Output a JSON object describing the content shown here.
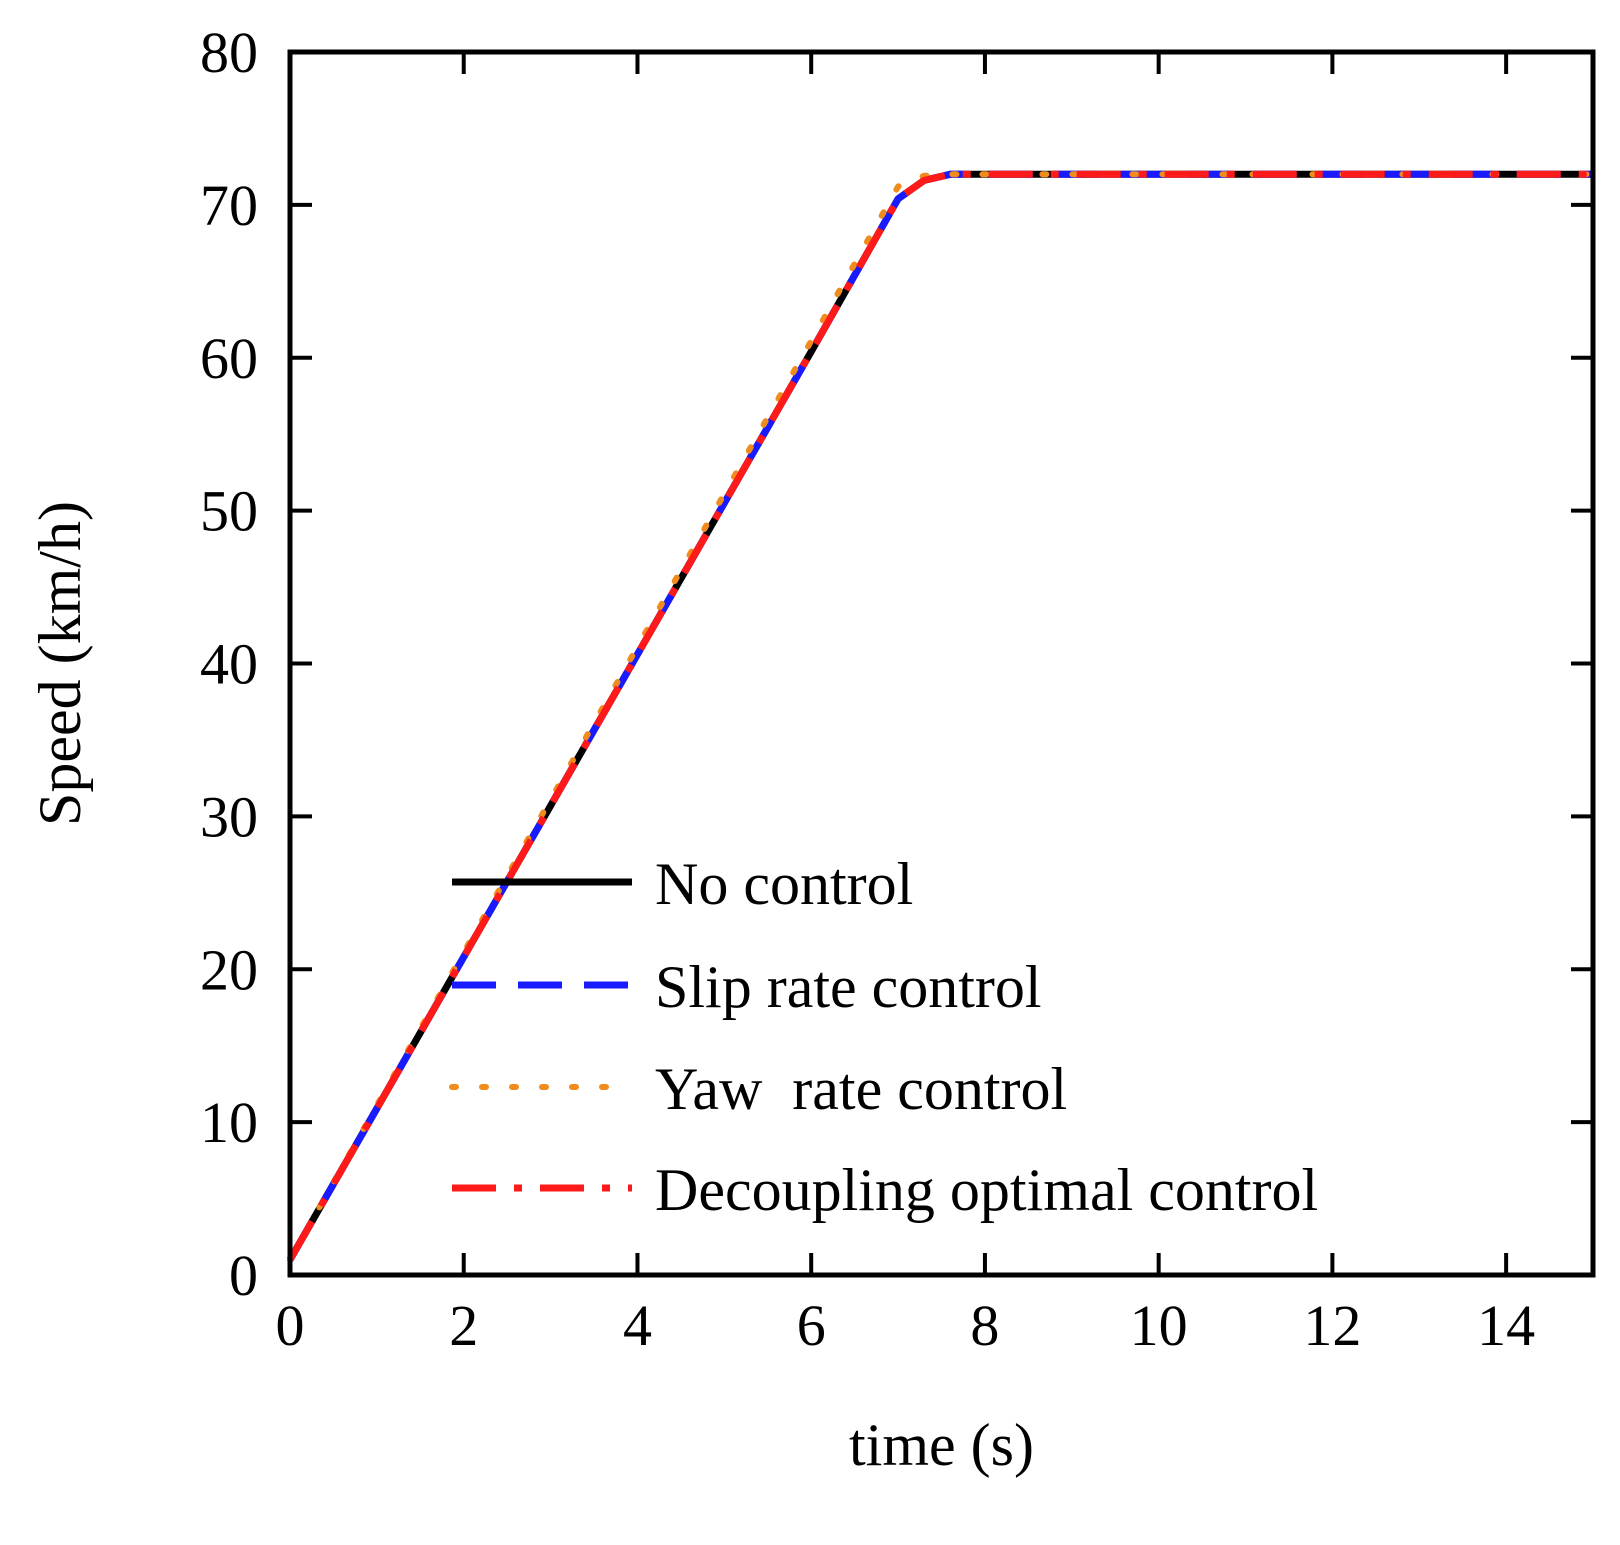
{
  "chart_data": {
    "type": "line",
    "title": "",
    "xlabel": "time (s)",
    "ylabel": "Speed (km/h)",
    "xlim": [
      0,
      15
    ],
    "ylim": [
      0,
      80
    ],
    "xticks": [
      0,
      2,
      4,
      6,
      8,
      10,
      12,
      14
    ],
    "yticks": [
      0,
      10,
      20,
      30,
      40,
      50,
      60,
      70,
      80
    ],
    "grid": false,
    "legend_position": "bottom-right",
    "series": [
      {
        "name": "No control",
        "color": "#000000",
        "style": "solid",
        "x": [
          0,
          1,
          2,
          3,
          4,
          5,
          6,
          7,
          7.3,
          7.6,
          8,
          10,
          12,
          14,
          15
        ],
        "y": [
          1,
          10.9,
          20.8,
          30.7,
          40.6,
          50.5,
          60.4,
          70.4,
          71.6,
          72,
          72,
          72,
          72,
          72,
          72
        ]
      },
      {
        "name": "Slip rate control",
        "color": "#1a1aff",
        "style": "dashed",
        "x": [
          0,
          1,
          2,
          3,
          4,
          5,
          6,
          7,
          7.3,
          7.6,
          8,
          10,
          12,
          14,
          15
        ],
        "y": [
          1,
          10.9,
          20.8,
          30.7,
          40.6,
          50.5,
          60.4,
          70.4,
          71.6,
          72,
          72,
          72,
          72,
          72,
          72
        ]
      },
      {
        "name": "Yaw  rate control",
        "color": "#f08c1e",
        "style": "dotted",
        "x": [
          0,
          1,
          2,
          3,
          4,
          5,
          6,
          7,
          7.3,
          7.6,
          8,
          10,
          12,
          14,
          15
        ],
        "y": [
          1,
          11.1,
          21.1,
          31.1,
          41.1,
          51.1,
          61.1,
          71.2,
          71.9,
          72,
          72,
          72,
          72,
          72,
          72
        ]
      },
      {
        "name": "Decoupling optimal control",
        "color": "#ff1a1a",
        "style": "dashdot",
        "x": [
          0,
          1,
          2,
          3,
          4,
          5,
          6,
          7,
          7.3,
          7.6,
          8,
          10,
          12,
          14,
          15
        ],
        "y": [
          1,
          10.9,
          20.8,
          30.7,
          40.6,
          50.5,
          60.4,
          70.4,
          71.6,
          72,
          72,
          72,
          72,
          72,
          72
        ]
      }
    ]
  }
}
